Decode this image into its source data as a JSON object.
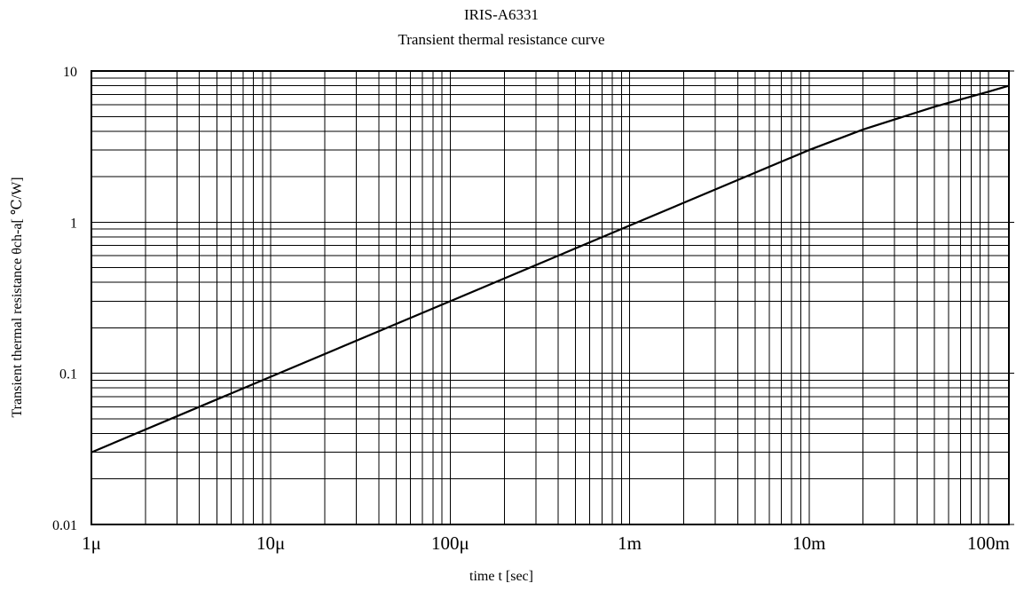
{
  "chart_data": {
    "type": "line",
    "title": "IRIS-A6331",
    "subtitle": "Transient thermal resistance curve",
    "xlabel": "time t [sec]",
    "ylabel": "Transient thermal resistance θch-a[ ℃/W]",
    "x_scale": "log",
    "y_scale": "log",
    "xlim": [
      1e-06,
      0.13
    ],
    "ylim": [
      0.01,
      10
    ],
    "x_tick_values": [
      1e-06,
      1e-05,
      0.0001,
      0.001,
      0.01,
      0.1
    ],
    "x_tick_labels": [
      "1μ",
      "10μ",
      "100μ",
      "1m",
      "10m",
      "100m"
    ],
    "y_tick_values": [
      0.01,
      0.1,
      1,
      10
    ],
    "y_tick_labels": [
      "0.01",
      "0.1",
      "1",
      "10"
    ],
    "grid": true,
    "series": [
      {
        "x": [
          1e-06,
          1e-05,
          0.0001,
          0.001,
          0.01,
          0.02,
          0.05,
          0.1,
          0.13
        ],
        "y": [
          0.03,
          0.095,
          0.3,
          0.95,
          3.0,
          4.1,
          5.8,
          7.3,
          8.0
        ]
      }
    ]
  }
}
